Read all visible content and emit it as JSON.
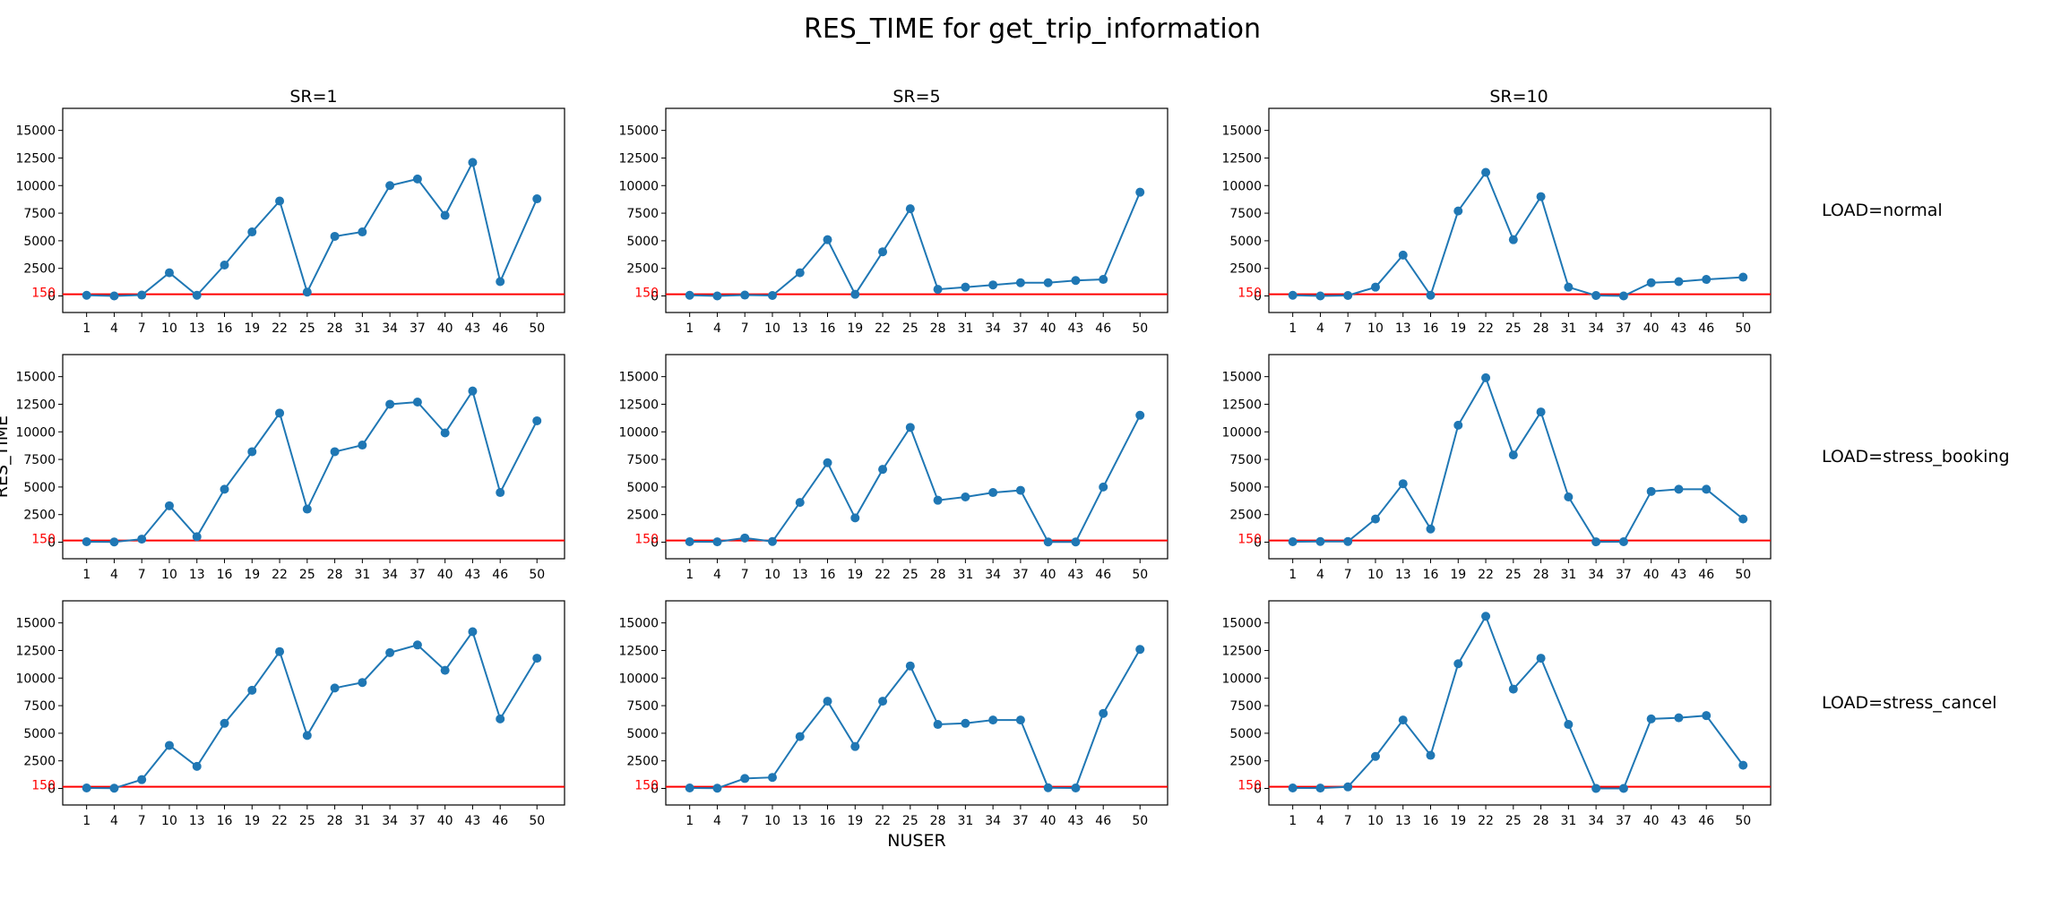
{
  "figure": {
    "title": "RES_TIME for get_trip_information",
    "xlabel": "NUSER",
    "ylabel": "RES_TIME",
    "column_titles": [
      "SR=1",
      "SR=5",
      "SR=10"
    ],
    "row_titles": [
      "LOAD=normal",
      "LOAD=stress_booking",
      "LOAD=stress_cancel"
    ]
  },
  "chart_data": [
    {
      "type": "line",
      "title": "SR=1",
      "row": "LOAD=normal",
      "x": [
        1,
        4,
        7,
        10,
        13,
        16,
        19,
        22,
        25,
        28,
        31,
        34,
        37,
        40,
        43,
        46,
        50
      ],
      "y": [
        60,
        0,
        80,
        2100,
        60,
        2800,
        5800,
        8600,
        350,
        5400,
        5800,
        10000,
        10600,
        7300,
        12100,
        1300,
        8800
      ],
      "threshold": 150,
      "ylim": [
        -1500,
        17000
      ],
      "yticks": [
        0,
        2500,
        5000,
        7500,
        10000,
        12500,
        15000
      ],
      "line_color": "#1f77b4",
      "threshold_color": "#ff0000"
    },
    {
      "type": "line",
      "title": "SR=5",
      "row": "LOAD=normal",
      "x": [
        1,
        4,
        7,
        10,
        13,
        16,
        19,
        22,
        25,
        28,
        31,
        34,
        37,
        40,
        43,
        46,
        50
      ],
      "y": [
        60,
        0,
        80,
        40,
        2100,
        5100,
        150,
        4000,
        7900,
        600,
        800,
        1000,
        1200,
        1200,
        1400,
        1500,
        9400
      ],
      "threshold": 150,
      "ylim": [
        -1500,
        17000
      ],
      "yticks": [
        0,
        2500,
        5000,
        7500,
        10000,
        12500,
        15000
      ],
      "line_color": "#1f77b4",
      "threshold_color": "#ff0000"
    },
    {
      "type": "line",
      "title": "SR=10",
      "row": "LOAD=normal",
      "x": [
        1,
        4,
        7,
        10,
        13,
        16,
        19,
        22,
        25,
        28,
        31,
        34,
        37,
        40,
        43,
        46,
        50
      ],
      "y": [
        60,
        0,
        40,
        800,
        3700,
        60,
        7700,
        11200,
        5100,
        9000,
        800,
        40,
        0,
        1200,
        1300,
        1500,
        1700
      ],
      "threshold": 150,
      "ylim": [
        -1500,
        17000
      ],
      "yticks": [
        0,
        2500,
        5000,
        7500,
        10000,
        12500,
        15000
      ],
      "line_color": "#1f77b4",
      "threshold_color": "#ff0000"
    },
    {
      "type": "line",
      "title": "",
      "row": "LOAD=stress_booking",
      "x": [
        1,
        4,
        7,
        10,
        13,
        16,
        19,
        22,
        25,
        28,
        31,
        34,
        37,
        40,
        43,
        46,
        50
      ],
      "y": [
        40,
        20,
        280,
        3300,
        500,
        4800,
        8200,
        11700,
        3000,
        8200,
        8800,
        12500,
        12700,
        9900,
        13700,
        4500,
        11000
      ],
      "threshold": 150,
      "ylim": [
        -1500,
        17000
      ],
      "yticks": [
        0,
        2500,
        5000,
        7500,
        10000,
        12500,
        15000
      ],
      "line_color": "#1f77b4",
      "threshold_color": "#ff0000"
    },
    {
      "type": "line",
      "title": "",
      "row": "LOAD=stress_booking",
      "x": [
        1,
        4,
        7,
        10,
        13,
        16,
        19,
        22,
        25,
        28,
        31,
        34,
        37,
        40,
        43,
        46,
        50
      ],
      "y": [
        40,
        30,
        380,
        60,
        3600,
        7200,
        2200,
        6600,
        10400,
        3800,
        4100,
        4500,
        4700,
        20,
        20,
        5000,
        11500
      ],
      "threshold": 150,
      "ylim": [
        -1500,
        17000
      ],
      "yticks": [
        0,
        2500,
        5000,
        7500,
        10000,
        12500,
        15000
      ],
      "line_color": "#1f77b4",
      "threshold_color": "#ff0000"
    },
    {
      "type": "line",
      "title": "",
      "row": "LOAD=stress_booking",
      "x": [
        1,
        4,
        7,
        10,
        13,
        16,
        19,
        22,
        25,
        28,
        31,
        34,
        37,
        40,
        43,
        46,
        50
      ],
      "y": [
        40,
        60,
        60,
        2100,
        5300,
        1200,
        10600,
        14900,
        7900,
        11800,
        4100,
        30,
        40,
        4600,
        4800,
        4800,
        2100
      ],
      "threshold": 150,
      "ylim": [
        -1500,
        17000
      ],
      "yticks": [
        0,
        2500,
        5000,
        7500,
        10000,
        12500,
        15000
      ],
      "line_color": "#1f77b4",
      "threshold_color": "#ff0000"
    },
    {
      "type": "line",
      "title": "",
      "row": "LOAD=stress_cancel",
      "x": [
        1,
        4,
        7,
        10,
        13,
        16,
        19,
        22,
        25,
        28,
        31,
        34,
        37,
        40,
        43,
        46,
        50
      ],
      "y": [
        40,
        20,
        800,
        3900,
        2000,
        5900,
        8900,
        12400,
        4800,
        9100,
        9600,
        12300,
        13000,
        10700,
        14200,
        6300,
        11800
      ],
      "threshold": 150,
      "ylim": [
        -1500,
        17000
      ],
      "yticks": [
        0,
        2500,
        5000,
        7500,
        10000,
        12500,
        15000
      ],
      "line_color": "#1f77b4",
      "threshold_color": "#ff0000"
    },
    {
      "type": "line",
      "title": "",
      "row": "LOAD=stress_cancel",
      "x": [
        1,
        4,
        7,
        10,
        13,
        16,
        19,
        22,
        25,
        28,
        31,
        34,
        37,
        40,
        43,
        46,
        50
      ],
      "y": [
        40,
        20,
        900,
        1000,
        4700,
        7900,
        3800,
        7900,
        11100,
        5800,
        5900,
        6200,
        6200,
        60,
        40,
        6800,
        12600
      ],
      "threshold": 150,
      "ylim": [
        -1500,
        17000
      ],
      "yticks": [
        0,
        2500,
        5000,
        7500,
        10000,
        12500,
        15000
      ],
      "line_color": "#1f77b4",
      "threshold_color": "#ff0000"
    },
    {
      "type": "line",
      "title": "",
      "row": "LOAD=stress_cancel",
      "x": [
        1,
        4,
        7,
        10,
        13,
        16,
        19,
        22,
        25,
        28,
        31,
        34,
        37,
        40,
        43,
        46,
        50
      ],
      "y": [
        40,
        30,
        140,
        2900,
        6200,
        3000,
        11300,
        15600,
        9000,
        11800,
        5800,
        0,
        0,
        6300,
        6400,
        6600,
        2100
      ],
      "threshold": 150,
      "ylim": [
        -1500,
        17000
      ],
      "yticks": [
        0,
        2500,
        5000,
        7500,
        10000,
        12500,
        15000
      ],
      "line_color": "#1f77b4",
      "threshold_color": "#ff0000"
    }
  ]
}
